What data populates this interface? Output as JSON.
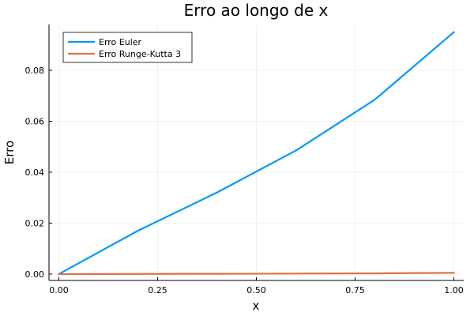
{
  "chart_data": {
    "type": "line",
    "title": "Erro ao longo de x",
    "xlabel": "x",
    "ylabel": "Erro",
    "xlim": [
      -0.025,
      1.025
    ],
    "ylim": [
      -0.0025,
      0.098
    ],
    "x_ticks": [
      0.0,
      0.25,
      0.5,
      0.75,
      1.0
    ],
    "x_tick_labels": [
      "0.00",
      "0.25",
      "0.50",
      "0.75",
      "1.00"
    ],
    "y_ticks": [
      0.0,
      0.02,
      0.04,
      0.06,
      0.08
    ],
    "y_tick_labels": [
      "0.00",
      "0.02",
      "0.04",
      "0.06",
      "0.08"
    ],
    "grid": true,
    "legend_position": "top-left",
    "series": [
      {
        "name": "Erro Euler",
        "color": "#009af9",
        "x": [
          0.0,
          0.2,
          0.4,
          0.6,
          0.8,
          1.0
        ],
        "y": [
          0.0,
          0.017,
          0.032,
          0.0485,
          0.0685,
          0.095
        ]
      },
      {
        "name": "Erro Runge-Kutta 3",
        "color": "#e26f46",
        "x": [
          0.0,
          0.2,
          0.4,
          0.6,
          0.8,
          1.0
        ],
        "y": [
          0.0,
          5e-05,
          0.0001,
          0.0002,
          0.0003,
          0.0005
        ]
      }
    ]
  }
}
